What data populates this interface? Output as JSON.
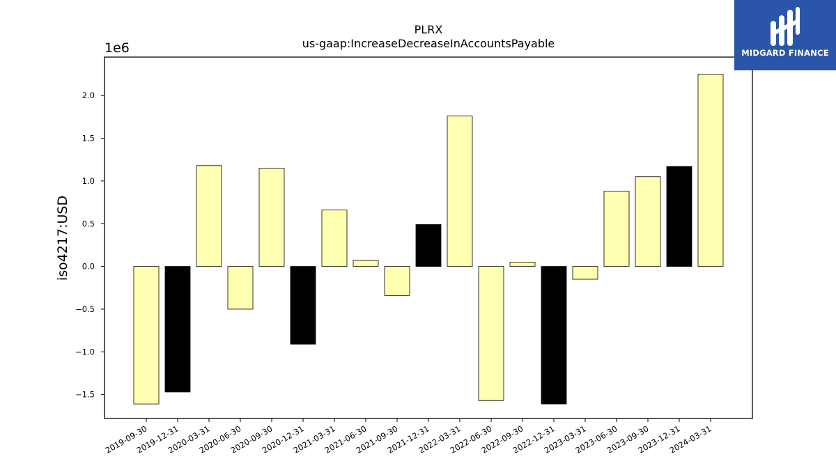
{
  "chart_data": {
    "type": "bar",
    "title": "PLRX",
    "subtitle": "us-gaap:IncreaseDecreaseInAccountsPayable",
    "ylabel": "iso4217:USD",
    "y_scale_label": "1e6",
    "ylim": [
      -1.78,
      2.45
    ],
    "yticks": [
      -1.5,
      -1.0,
      -0.5,
      0.0,
      0.5,
      1.0,
      1.5,
      2.0
    ],
    "ytick_labels": [
      "−1.5",
      "−1.0",
      "−0.5",
      "0.0",
      "0.5",
      "1.0",
      "1.5",
      "2.0"
    ],
    "grid": false,
    "categories": [
      "2019-09-30",
      "2019-12-31",
      "2020-03-31",
      "2020-06-30",
      "2020-09-30",
      "2020-12-31",
      "2021-03-31",
      "2021-06-30",
      "2021-09-30",
      "2021-12-31",
      "2022-03-31",
      "2022-06-30",
      "2022-09-30",
      "2022-12-31",
      "2023-03-31",
      "2023-06-30",
      "2023-09-30",
      "2023-12-31",
      "2024-03-31"
    ],
    "values": [
      -1.61,
      -1.47,
      1.18,
      -0.5,
      1.15,
      -0.91,
      0.66,
      0.07,
      -0.34,
      0.49,
      1.76,
      -1.57,
      0.05,
      -1.61,
      -0.15,
      0.88,
      1.05,
      1.17,
      2.25
    ],
    "colors": [
      "#ffffb2",
      "#000000",
      "#ffffb2",
      "#ffffb2",
      "#ffffb2",
      "#000000",
      "#ffffb2",
      "#ffffb2",
      "#ffffb2",
      "#000000",
      "#ffffb2",
      "#ffffb2",
      "#ffffb2",
      "#000000",
      "#ffffb2",
      "#ffffb2",
      "#ffffb2",
      "#000000",
      "#ffffb2"
    ]
  },
  "logo": {
    "text": "MIDGARD FINANCE",
    "background": "#2a55a8"
  }
}
